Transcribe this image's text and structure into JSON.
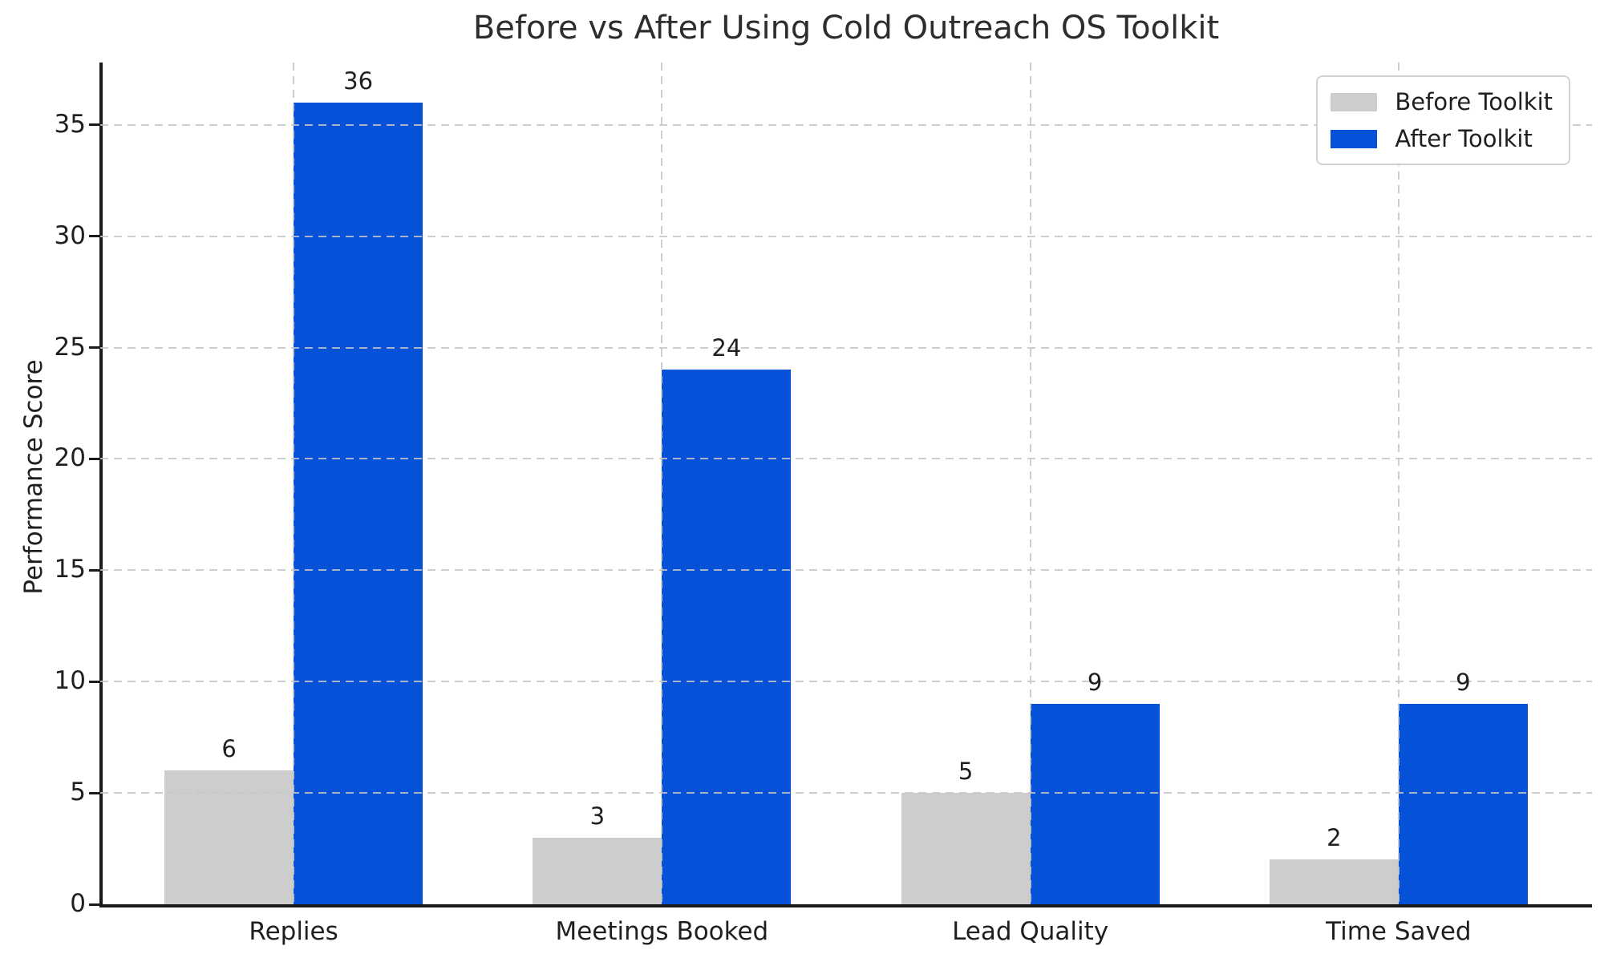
{
  "chart_data": {
    "type": "bar",
    "title": "Before vs After Using Cold Outreach OS Toolkit",
    "ylabel": "Performance Score",
    "xlabel": "",
    "categories": [
      "Replies",
      "Meetings Booked",
      "Lead Quality",
      "Time Saved"
    ],
    "series": [
      {
        "name": "Before Toolkit",
        "color": "#cdcdcd",
        "values": [
          6,
          3,
          5,
          2
        ]
      },
      {
        "name": "After Toolkit",
        "color": "#0551d8",
        "values": [
          36,
          24,
          9,
          9
        ]
      }
    ],
    "yticks": [
      0,
      5,
      10,
      15,
      20,
      25,
      30,
      35
    ],
    "ylim": [
      0,
      37.8
    ],
    "grid": true,
    "grid_style": "dashed",
    "bar_value_labels_shown": true,
    "legend_position": "upper right"
  },
  "style": {
    "grid_color": "#c6c6c6",
    "axis_color": "#1a1a1a",
    "text_color": "#1f1f1f",
    "background": "#ffffff"
  }
}
